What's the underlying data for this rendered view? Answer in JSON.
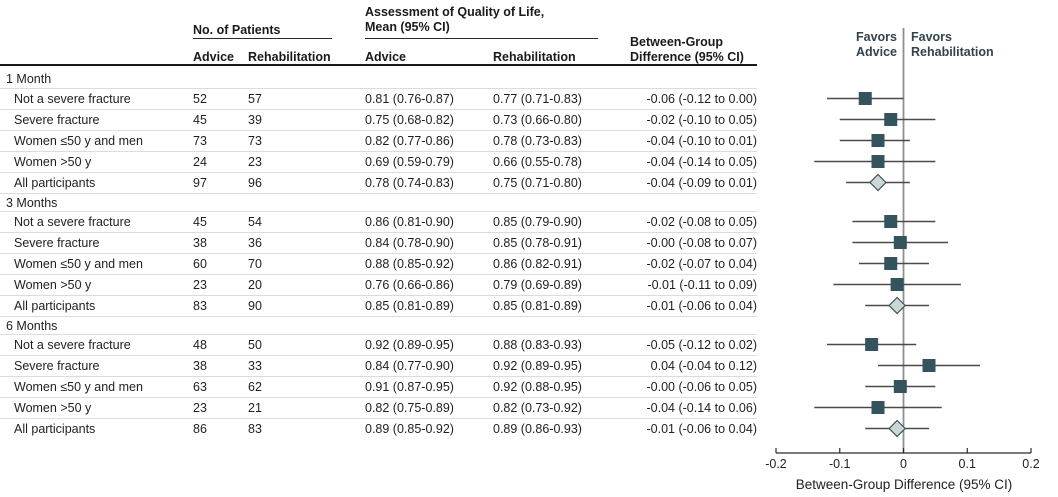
{
  "table": {
    "col_groups": {
      "patients": "No. of Patients",
      "qol_line1": "Assessment of Quality of Life,",
      "qol_line2": "Mean (95% CI)",
      "diff_line1": "Between-Group",
      "diff_line2": "Difference (95% CI)"
    },
    "subheaders": {
      "n_advice": "Advice",
      "n_rehab": "Rehabilitation",
      "qol_advice": "Advice",
      "qol_rehab": "Rehabilitation"
    }
  },
  "forest": {
    "favors_left": [
      "Favors",
      "Advice"
    ],
    "favors_right": [
      "Favors",
      "Rehabilitation"
    ],
    "axis_title": "Between-Group Difference (95% CI)",
    "tick_labels": [
      "-0.2",
      "-0.1",
      "0",
      "0.1",
      "0.2"
    ],
    "tick_values": [
      -0.2,
      -0.1,
      0,
      0.1,
      0.2
    ],
    "colors": {
      "marker": "#35535c",
      "diamond_fill": "#ccd6d4",
      "ci_line": "#4a4a4a",
      "zero_line": "#8f8f8f",
      "axis": "#2b2b2b"
    }
  },
  "chart_data": {
    "type": "scatter",
    "subtype": "forest-plot",
    "xlabel": "Between-Group Difference (95% CI)",
    "xlim": [
      -0.2,
      0.2
    ],
    "sections": [
      {
        "title": "1 Month",
        "rows": [
          {
            "label": "Not a severe fracture",
            "n_advice": "52",
            "n_rehab": "57",
            "advice": "0.81 (0.76-0.87)",
            "rehab": "0.77 (0.71-0.83)",
            "diff": "-0.06 (-0.12 to 0.00)",
            "est": -0.06,
            "lo": -0.12,
            "hi": 0.0,
            "marker": "square"
          },
          {
            "label": "Severe fracture",
            "n_advice": "45",
            "n_rehab": "39",
            "advice": "0.75 (0.68-0.82)",
            "rehab": "0.73 (0.66-0.80)",
            "diff": "-0.02 (-0.10 to 0.05)",
            "est": -0.02,
            "lo": -0.1,
            "hi": 0.05,
            "marker": "square"
          },
          {
            "label": "Women ≤50 y and men",
            "n_advice": "73",
            "n_rehab": "73",
            "advice": "0.82 (0.77-0.86)",
            "rehab": "0.78 (0.73-0.83)",
            "diff": "-0.04 (-0.10 to 0.01)",
            "est": -0.04,
            "lo": -0.1,
            "hi": 0.01,
            "marker": "square"
          },
          {
            "label": "Women >50 y",
            "n_advice": "24",
            "n_rehab": "23",
            "advice": "0.69 (0.59-0.79)",
            "rehab": "0.66 (0.55-0.78)",
            "diff": "-0.04 (-0.14 to 0.05)",
            "est": -0.04,
            "lo": -0.14,
            "hi": 0.05,
            "marker": "square"
          },
          {
            "label": "All participants",
            "n_advice": "97",
            "n_rehab": "96",
            "advice": "0.78 (0.74-0.83)",
            "rehab": "0.75 (0.71-0.80)",
            "diff": "-0.04 (-0.09 to 0.01)",
            "est": -0.04,
            "lo": -0.09,
            "hi": 0.01,
            "marker": "diamond"
          }
        ]
      },
      {
        "title": "3 Months",
        "rows": [
          {
            "label": "Not a severe fracture",
            "n_advice": "45",
            "n_rehab": "54",
            "advice": "0.86 (0.81-0.90)",
            "rehab": "0.85 (0.79-0.90)",
            "diff": "-0.02 (-0.08 to 0.05)",
            "est": -0.02,
            "lo": -0.08,
            "hi": 0.05,
            "marker": "square"
          },
          {
            "label": "Severe fracture",
            "n_advice": "38",
            "n_rehab": "36",
            "advice": "0.84 (0.78-0.90)",
            "rehab": "0.85 (0.78-0.91)",
            "diff": "-0.00 (-0.08 to 0.07)",
            "est": -0.005,
            "lo": -0.08,
            "hi": 0.07,
            "marker": "square"
          },
          {
            "label": "Women ≤50 y and men",
            "n_advice": "60",
            "n_rehab": "70",
            "advice": "0.88 (0.85-0.92)",
            "rehab": "0.86 (0.82-0.91)",
            "diff": "-0.02 (-0.07 to 0.04)",
            "est": -0.02,
            "lo": -0.07,
            "hi": 0.04,
            "marker": "square"
          },
          {
            "label": "Women >50 y",
            "n_advice": "23",
            "n_rehab": "20",
            "advice": "0.76 (0.66-0.86)",
            "rehab": "0.79 (0.69-0.89)",
            "diff": "-0.01 (-0.11 to 0.09)",
            "est": -0.01,
            "lo": -0.11,
            "hi": 0.09,
            "marker": "square"
          },
          {
            "label": "All participants",
            "n_advice": "83",
            "n_rehab": "90",
            "advice": "0.85 (0.81-0.89)",
            "rehab": "0.85 (0.81-0.89)",
            "diff": "-0.01 (-0.06 to 0.04)",
            "est": -0.01,
            "lo": -0.06,
            "hi": 0.04,
            "marker": "diamond"
          }
        ]
      },
      {
        "title": "6 Months",
        "rows": [
          {
            "label": "Not a severe fracture",
            "n_advice": "48",
            "n_rehab": "50",
            "advice": "0.92 (0.89-0.95)",
            "rehab": "0.88 (0.83-0.93)",
            "diff": "-0.05 (-0.12 to 0.02)",
            "est": -0.05,
            "lo": -0.12,
            "hi": 0.02,
            "marker": "square"
          },
          {
            "label": "Severe fracture",
            "n_advice": "38",
            "n_rehab": "33",
            "advice": "0.84 (0.77-0.90)",
            "rehab": "0.92 (0.89-0.95)",
            "diff": "0.04 (-0.04 to 0.12)",
            "est": 0.04,
            "lo": -0.04,
            "hi": 0.12,
            "marker": "square"
          },
          {
            "label": "Women ≤50 y and men",
            "n_advice": "63",
            "n_rehab": "62",
            "advice": "0.91 (0.87-0.95)",
            "rehab": "0.92 (0.88-0.95)",
            "diff": "-0.00 (-0.06 to 0.05)",
            "est": -0.005,
            "lo": -0.06,
            "hi": 0.05,
            "marker": "square"
          },
          {
            "label": "Women >50 y",
            "n_advice": "23",
            "n_rehab": "21",
            "advice": "0.82 (0.75-0.89)",
            "rehab": "0.82 (0.73-0.92)",
            "diff": "-0.04 (-0.14 to 0.06)",
            "est": -0.04,
            "lo": -0.14,
            "hi": 0.06,
            "marker": "square"
          },
          {
            "label": "All participants",
            "n_advice": "86",
            "n_rehab": "83",
            "advice": "0.89 (0.85-0.92)",
            "rehab": "0.89 (0.86-0.93)",
            "diff": "-0.01 (-0.06 to 0.04)",
            "est": -0.01,
            "lo": -0.06,
            "hi": 0.04,
            "marker": "diamond"
          }
        ]
      }
    ]
  }
}
